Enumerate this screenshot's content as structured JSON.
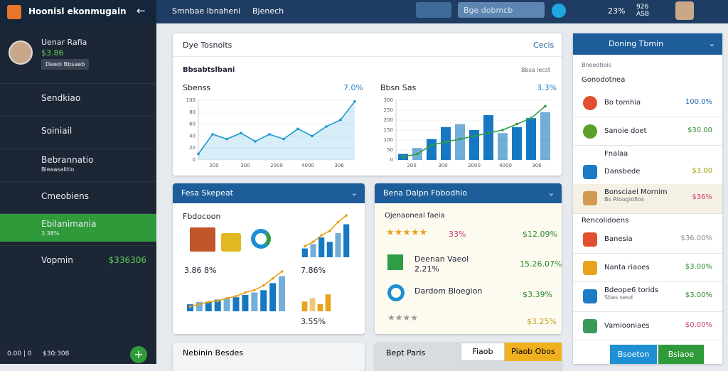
{
  "topbar": {
    "brand": "Hoonisl ekonmugain",
    "menu": "Smnbae lbnaheni",
    "tab": "Bjenech",
    "search": "Bge dobmcb",
    "stat": "23%",
    "stat2": "926 ASB"
  },
  "sidebar": {
    "user": "Uenar Rafia",
    "balance": "$3.86",
    "button": "Deeoi Bbsaeb",
    "items": [
      {
        "label": "Sendkiao"
      },
      {
        "label": "Soiniail"
      },
      {
        "label": "Bebrannatio",
        "sub": "Bleaasalitio"
      },
      {
        "label": "Cmeobiens"
      },
      {
        "label": "Ebilanimania",
        "sub": "3.38%"
      },
      {
        "label": "Vopmin",
        "value": "$336306"
      }
    ],
    "footer": "0.00 | 0",
    "footer_value": "$30:308"
  },
  "overview": {
    "title": "Dye Tosnoits",
    "action": "Cecis",
    "section": "Bbsabtslbani",
    "section_note": "Bbsa lecst",
    "charts": [
      {
        "title": "Sbenss",
        "change": "7.0%",
        "ylim": [
          0,
          100
        ],
        "yticks": [
          0,
          20,
          40,
          60,
          80,
          100
        ],
        "categories": [
          "200",
          "300",
          "2000",
          "4000",
          "306"
        ],
        "line": [
          10,
          43,
          35,
          45,
          31,
          43,
          35,
          52,
          40,
          56,
          67,
          98
        ],
        "line_color": "#1f9bd1",
        "area": true
      },
      {
        "title": "Bbsn Sas",
        "change": "3.3%",
        "ylim": [
          0,
          300
        ],
        "yticks": [
          0,
          50,
          100,
          150,
          200,
          250,
          300
        ],
        "categories": [
          "200",
          "300",
          "2000",
          "4000",
          "306"
        ],
        "bars": [
          30,
          60,
          105,
          165,
          180,
          150,
          225,
          135,
          165,
          210,
          240
        ],
        "bar_color": "#1678c2",
        "line": [
          15,
          30,
          75,
          90,
          105,
          120,
          135,
          150,
          180,
          210,
          270
        ],
        "line_color": "#2e9e44"
      }
    ]
  },
  "sales": {
    "title": "Fesa Skepeat",
    "section": "Fbdocoon",
    "left_value": "3.86 8%",
    "right_value": "7.86%",
    "bottom_value": "3.55%",
    "chart_main": {
      "ylim": [
        0,
        100
      ],
      "bars": [
        15,
        20,
        20,
        25,
        28,
        30,
        35,
        40,
        45,
        60,
        75
      ],
      "bar_color": "#1678c2",
      "line": [
        10,
        15,
        20,
        22,
        28,
        32,
        40,
        45,
        55,
        70,
        85
      ],
      "line_color": "#e8a21c"
    },
    "chart_top": {
      "ylim": [
        0,
        100
      ],
      "bars": [
        20,
        30,
        45,
        35,
        55,
        75
      ],
      "bar_color": "#1678c2",
      "line": [
        25,
        35,
        50,
        60,
        80,
        95
      ],
      "line_color": "#e8a21c"
    },
    "chart_small": {
      "ylim": [
        0,
        100
      ],
      "bars": [
        40,
        55,
        30,
        70
      ],
      "bar_color": "#e8a21c"
    }
  },
  "details": {
    "title": "Bena Dalpn Fbbodhio",
    "filter": "Ojenaoneal faeia",
    "rows": [
      {
        "label": "33%",
        "value": "$12.09%"
      },
      {
        "label": "Deenan Vaeol",
        "sub": "2.21%",
        "value": "15.26.07%"
      },
      {
        "label": "Dardom Bloegion",
        "value": "$3.39%"
      },
      {
        "label": "",
        "value": "$3.25%"
      }
    ]
  },
  "bottom": {
    "left": "Nebinin Besdes",
    "mid": "Bept Paris",
    "btn1": "Fiaob",
    "btn2": "Piaob Obos"
  },
  "right": {
    "title": "Doning Tbmin",
    "note": "Bnoeotiois",
    "section1": "Gonodotnea",
    "items1": [
      {
        "label": "Bo tomhia",
        "value": "100.0%"
      },
      {
        "label": "Sanoie doet",
        "value": "$30.00"
      },
      {
        "label": "Fnalaa",
        "value": ""
      },
      {
        "label": "Dansbede",
        "value": "$3.00"
      },
      {
        "label": "Bonsciael Mornim",
        "sub": "Bs Rloogiofios",
        "value": "$36%"
      }
    ],
    "section2": "Rencolidoens",
    "items2": [
      {
        "label": "Banesia",
        "value": "$36.00%"
      },
      {
        "label": "Nanta riaoes",
        "value": "$3.00%"
      },
      {
        "label": "Bdeope6 torids",
        "sub": "Sbas sesd",
        "value": "$3.00%"
      },
      {
        "label": "Vamiooniaes",
        "value": "$0.00%"
      }
    ],
    "btn1": "Bsoeton",
    "btn2": "Bsiaoe"
  }
}
